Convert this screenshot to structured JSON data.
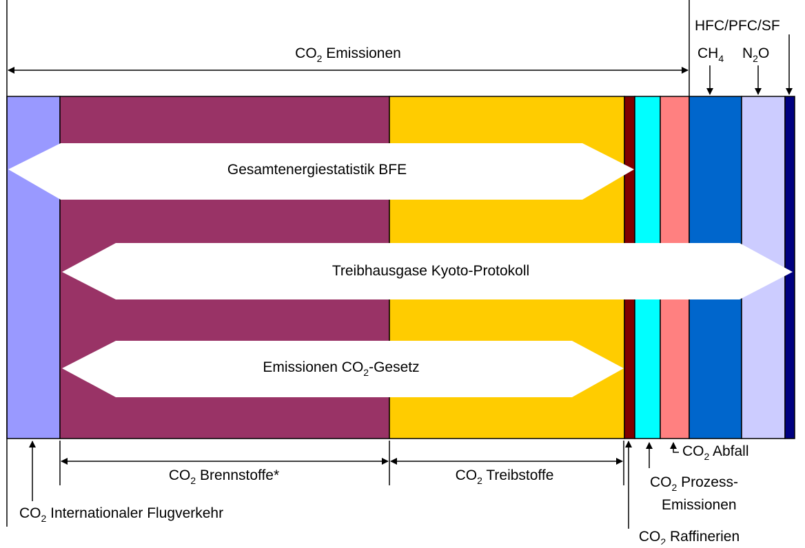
{
  "labels": {
    "co2_emissions": {
      "before": "CO",
      "sub": "2",
      "after": " Emissionen"
    },
    "hfc": {
      "before": "HFC/PFC/SF"
    },
    "ch4": {
      "before": "CH",
      "sub": "4"
    },
    "n2o": {
      "before": "N",
      "sub": "2",
      "after": "O"
    },
    "energy_statistics": {
      "before": "Gesamtenergiestatistik BFE"
    },
    "kyoto": {
      "before": "Treibhausgase Kyoto-Protokoll"
    },
    "co2_law": {
      "before": "Emissionen CO",
      "sub": "2",
      "after": "-Gesetz"
    },
    "fuels": {
      "before": "CO",
      "sub": "2",
      "after": " Brennstoffe*"
    },
    "motor_fuels": {
      "before": "CO",
      "sub": "2",
      "after": " Treibstoffe"
    },
    "aviation": {
      "before": "CO",
      "sub": "2",
      "after": " Internationaler Flugverkehr"
    },
    "refineries": {
      "before": "CO",
      "sub": "2",
      "after": " Raffinerien"
    },
    "process_1": {
      "before": "CO",
      "sub": "2",
      "after": " Prozess-"
    },
    "process_2": {
      "before": "Emissionen"
    },
    "waste": {
      "before": "CO",
      "sub": "2",
      "after": " Abfall"
    }
  }
}
